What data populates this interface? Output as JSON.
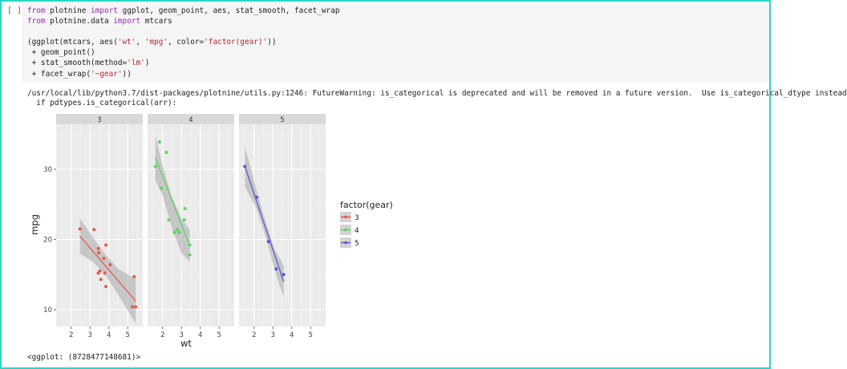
{
  "cell": {
    "prompt": "[ ]",
    "code_lines": [
      [
        {
          "t": "from ",
          "c": "kw"
        },
        {
          "t": "plotnine "
        },
        {
          "t": "import ",
          "c": "kw"
        },
        {
          "t": "ggplot, geom_point, aes, stat_smooth, facet_wrap"
        }
      ],
      [
        {
          "t": "from ",
          "c": "kw"
        },
        {
          "t": "plotnine.data "
        },
        {
          "t": "import ",
          "c": "kw"
        },
        {
          "t": "mtcars"
        }
      ],
      [
        {
          "t": ""
        }
      ],
      [
        {
          "t": "(ggplot(mtcars, aes("
        },
        {
          "t": "'wt'",
          "c": "str"
        },
        {
          "t": ", "
        },
        {
          "t": "'mpg'",
          "c": "str"
        },
        {
          "t": ", color="
        },
        {
          "t": "'factor(gear)'",
          "c": "str"
        },
        {
          "t": "))"
        }
      ],
      [
        {
          "t": " + geom_point()"
        }
      ],
      [
        {
          "t": " + stat_smooth(method="
        },
        {
          "t": "'lm'",
          "c": "str"
        },
        {
          "t": ")"
        }
      ],
      [
        {
          "t": " + facet_wrap("
        },
        {
          "t": "'~gear'",
          "c": "str"
        },
        {
          "t": "))"
        }
      ]
    ]
  },
  "output": {
    "warning_lines": [
      "/usr/local/lib/python3.7/dist-packages/plotnine/utils.py:1246: FutureWarning: is_categorical is deprecated and will be removed in a future version.  Use is_categorical_dtype instead",
      "  if pdtypes.is_categorical(arr):"
    ],
    "repr": "<ggplot: (8728477148681)>"
  },
  "chart_data": {
    "type": "scatter",
    "xlabel": "wt",
    "ylabel": "mpg",
    "xlim": [
      1.2,
      5.8
    ],
    "ylim": [
      7.6,
      36.4
    ],
    "x_ticks": [
      2,
      3,
      4,
      5
    ],
    "y_ticks": [
      10,
      20,
      30
    ],
    "grid": true,
    "legend": {
      "title": "factor(gear)",
      "placement": "right"
    },
    "facets": [
      {
        "label": "3",
        "color": "#e05a4e",
        "points": [
          [
            2.465,
            21.5
          ],
          [
            3.215,
            21.4
          ],
          [
            3.44,
            18.7
          ],
          [
            3.46,
            18.1
          ],
          [
            3.57,
            14.3
          ],
          [
            3.52,
            15.5
          ],
          [
            3.435,
            15.2
          ],
          [
            3.73,
            17.3
          ],
          [
            3.78,
            15.2
          ],
          [
            3.84,
            13.3
          ],
          [
            3.845,
            19.2
          ],
          [
            4.07,
            16.4
          ],
          [
            5.25,
            10.4
          ],
          [
            5.424,
            10.4
          ],
          [
            5.345,
            14.7
          ]
        ],
        "fit": [
          [
            2.465,
            20.47
          ],
          [
            5.424,
            11.22
          ]
        ],
        "band": {
          "upper": [
            [
              2.465,
              23.0
            ],
            [
              3.2,
              20.1
            ],
            [
              3.8,
              17.9
            ],
            [
              4.5,
              15.8
            ],
            [
              5.424,
              14.4
            ]
          ],
          "lower": [
            [
              2.465,
              18.0
            ],
            [
              3.2,
              16.7
            ],
            [
              3.8,
              15.0
            ],
            [
              4.5,
              12.1
            ],
            [
              5.424,
              8.0
            ]
          ]
        }
      },
      {
        "label": "4",
        "color": "#5fd35f",
        "points": [
          [
            2.62,
            21.0
          ],
          [
            2.875,
            21.0
          ],
          [
            2.32,
            22.8
          ],
          [
            3.19,
            24.4
          ],
          [
            3.15,
            22.8
          ],
          [
            3.44,
            19.2
          ],
          [
            3.44,
            17.8
          ],
          [
            2.2,
            32.4
          ],
          [
            1.615,
            30.4
          ],
          [
            1.835,
            33.9
          ],
          [
            1.935,
            27.3
          ],
          [
            2.78,
            21.4
          ]
        ],
        "fit": [
          [
            1.615,
            31.6
          ],
          [
            3.44,
            19.1
          ]
        ],
        "band": {
          "upper": [
            [
              1.615,
              34.8
            ],
            [
              2.0,
              30.5
            ],
            [
              2.5,
              26.0
            ],
            [
              3.0,
              23.0
            ],
            [
              3.44,
              21.4
            ]
          ],
          "lower": [
            [
              1.615,
              28.4
            ],
            [
              2.0,
              26.3
            ],
            [
              2.5,
              21.6
            ],
            [
              3.0,
              18.0
            ],
            [
              3.44,
              16.8
            ]
          ]
        }
      },
      {
        "label": "5",
        "color": "#5959d8",
        "points": [
          [
            2.14,
            26.0
          ],
          [
            1.513,
            30.4
          ],
          [
            3.17,
            15.8
          ],
          [
            2.77,
            19.7
          ],
          [
            3.57,
            15.0
          ]
        ],
        "fit": [
          [
            1.513,
            30.4
          ],
          [
            3.57,
            14.0
          ]
        ],
        "band": {
          "upper": [
            [
              1.513,
              33.3
            ],
            [
              2.1,
              27.3
            ],
            [
              2.6,
              22.7
            ],
            [
              3.1,
              18.6
            ],
            [
              3.57,
              16.3
            ]
          ],
          "lower": [
            [
              1.513,
              27.5
            ],
            [
              2.1,
              24.6
            ],
            [
              2.6,
              20.5
            ],
            [
              3.1,
              15.6
            ],
            [
              3.57,
              11.7
            ]
          ]
        }
      }
    ],
    "series": [
      {
        "name": "3",
        "color": "#e05a4e"
      },
      {
        "name": "4",
        "color": "#5fd35f"
      },
      {
        "name": "5",
        "color": "#5959d8"
      }
    ]
  }
}
